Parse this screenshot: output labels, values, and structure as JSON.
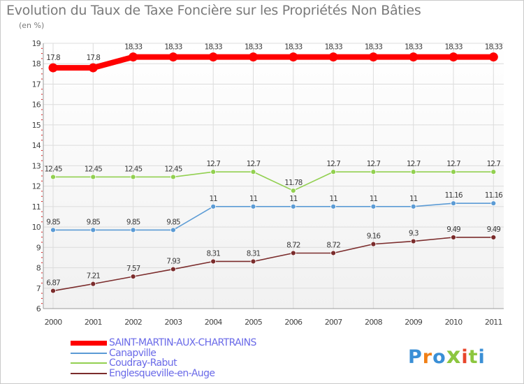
{
  "chart_data": {
    "type": "line",
    "title": "Evolution du Taux de Taxe Foncière sur les Propriétés Non Bâties",
    "unit_label": "(en %)",
    "x": [
      "2000",
      "2001",
      "2002",
      "2003",
      "2004",
      "2005",
      "2006",
      "2007",
      "2008",
      "2009",
      "2010",
      "2011"
    ],
    "ylim": [
      6,
      19
    ],
    "y_ticks": [
      "6",
      "7",
      "8",
      "9",
      "10",
      "11",
      "12",
      "13",
      "14",
      "15",
      "16",
      "17",
      "18",
      "19"
    ],
    "grid": true,
    "legend_position": "bottom-left",
    "series": [
      {
        "name": "SAINT-MARTIN-AUX-CHARTRAINS",
        "color": "#ff0000",
        "values": [
          17.8,
          17.8,
          18.33,
          18.33,
          18.33,
          18.33,
          18.33,
          18.33,
          18.33,
          18.33,
          18.33,
          18.33
        ],
        "labels": [
          "17.8",
          "17.8",
          "18.33",
          "18.33",
          "18.33",
          "18.33",
          "18.33",
          "18.33",
          "18.33",
          "18.33",
          "18.33",
          "18.33"
        ]
      },
      {
        "name": "Canapville",
        "color": "#5b9bd5",
        "values": [
          9.85,
          9.85,
          9.85,
          9.85,
          11,
          11,
          11,
          11,
          11,
          11,
          11.16,
          11.16
        ],
        "labels": [
          "9.85",
          "9.85",
          "9.85",
          "9.85",
          "11",
          "11",
          "11",
          "11",
          "11",
          "11",
          "11.16",
          "11.16"
        ]
      },
      {
        "name": "Coudray-Rabut",
        "color": "#92d050",
        "values": [
          12.45,
          12.45,
          12.45,
          12.45,
          12.7,
          12.7,
          11.78,
          12.7,
          12.7,
          12.7,
          12.7,
          12.7
        ],
        "labels": [
          "12.45",
          "12.45",
          "12.45",
          "12.45",
          "12.7",
          "12.7",
          "11.78",
          "12.7",
          "12.7",
          "12.7",
          "12.7",
          "12.7"
        ]
      },
      {
        "name": "Englesqueville-en-Auge",
        "color": "#7b2c2c",
        "values": [
          6.87,
          7.21,
          7.57,
          7.93,
          8.31,
          8.31,
          8.72,
          8.72,
          9.16,
          9.3,
          9.49,
          9.49
        ],
        "labels": [
          "6.87",
          "7.21",
          "7.57",
          "7.93",
          "8.31",
          "8.31",
          "8.72",
          "8.72",
          "9.16",
          "9.3",
          "9.49",
          "9.49"
        ]
      }
    ]
  },
  "brand": {
    "text": "Proxiti",
    "letter_colors": [
      "#3a8fd6",
      "#f07f16",
      "#3a8fd6",
      "#8cc63f",
      "#e8452b",
      "#8cc63f",
      "#3a8fd6"
    ]
  }
}
